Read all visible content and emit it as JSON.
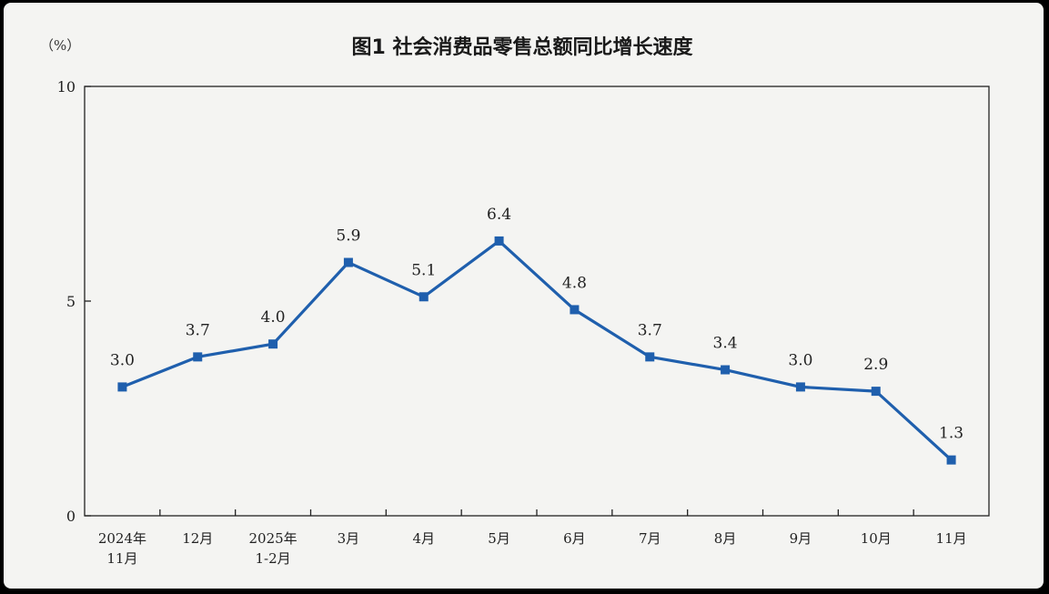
{
  "chart_data": {
    "type": "line",
    "title": "图1  社会消费品零售总额同比增长速度",
    "unit_label": "（%）",
    "categories": [
      [
        "2024年",
        "11月"
      ],
      [
        "12月"
      ],
      [
        "2025年",
        "1-2月"
      ],
      [
        "3月"
      ],
      [
        "4月"
      ],
      [
        "5月"
      ],
      [
        "6月"
      ],
      [
        "7月"
      ],
      [
        "8月"
      ],
      [
        "9月"
      ],
      [
        "10月"
      ],
      [
        "11月"
      ]
    ],
    "values": [
      3.0,
      3.7,
      4.0,
      5.9,
      5.1,
      6.4,
      4.8,
      3.7,
      3.4,
      3.0,
      2.9,
      1.3
    ],
    "value_labels": [
      "3.0",
      "3.7",
      "4.0",
      "5.9",
      "5.1",
      "6.4",
      "4.8",
      "3.7",
      "3.4",
      "3.0",
      "2.9",
      "1.3"
    ],
    "ylim": [
      0,
      10
    ],
    "yticks": [
      "0",
      "5",
      "10"
    ],
    "grid": false,
    "line_color": "#1f5fad"
  }
}
